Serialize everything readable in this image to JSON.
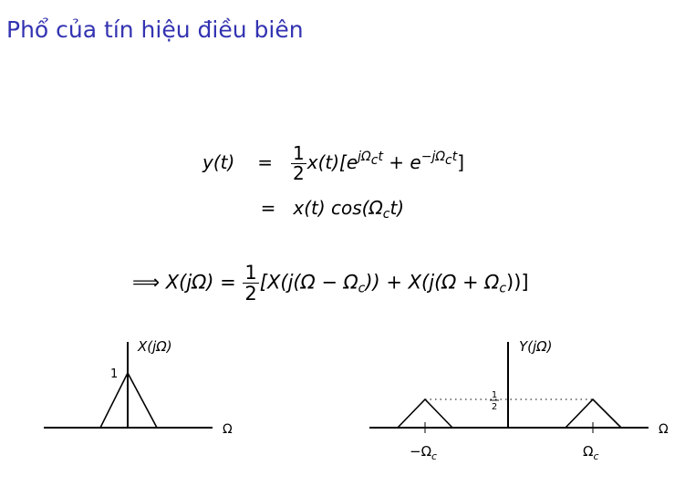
{
  "slide": {
    "title": "Phổ của tín hiệu điều biên"
  },
  "equations": {
    "line1": {
      "lhs": "y(t)",
      "rel": "=",
      "frac_num": "1",
      "frac_den": "2",
      "body_a": "x(t)[e",
      "exp1": "jΩ",
      "exp1_sub": "c",
      "exp1_t": "t",
      "plus": " + e",
      "exp2": "−jΩ",
      "exp2_sub": "c",
      "exp2_t": "t",
      "close": "]"
    },
    "line2": {
      "rel": "=",
      "body_a": "x(t) cos(Ω",
      "sub": "c",
      "body_b": "t)"
    },
    "line3": {
      "arrow": "⟹",
      "lhs": "X(jΩ) =",
      "frac_num": "1",
      "frac_den": "2",
      "body_a": "[X(j(Ω − Ω",
      "sub1": "c",
      "body_b": ")) + X(j(Ω + Ω",
      "sub2": "c",
      "body_c": "))]"
    }
  },
  "plots": {
    "left": {
      "label": "X(jΩ)",
      "peak_label": "1",
      "axis_label": "Ω"
    },
    "right": {
      "label": "Y(jΩ)",
      "half_num": "1",
      "half_den": "2",
      "axis_label": "Ω",
      "neg_carrier": "−Ω",
      "neg_carrier_sub": "c",
      "pos_carrier": "Ω",
      "pos_carrier_sub": "c"
    }
  },
  "colors": {
    "title": "#3333b2",
    "ink": "#000000"
  }
}
